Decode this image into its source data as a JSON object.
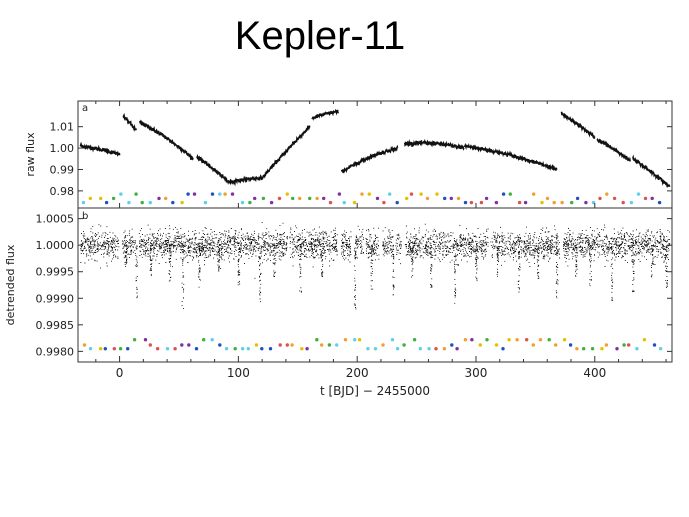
{
  "slide": {
    "title": "Kepler-11"
  },
  "chart_data": [
    {
      "type": "scatter",
      "panel": "a",
      "ylabel": "raw flux",
      "xlim": [
        -35,
        465
      ],
      "ylim": [
        0.972,
        1.022
      ],
      "yticks": [
        0.98,
        0.99,
        1.0,
        1.01
      ],
      "ytick_labels": [
        "0.98",
        "0.99",
        "1.00",
        "1.01"
      ],
      "x_gaps": [
        [
          7,
          14
        ],
        [
          185,
          195
        ],
        [
          370,
          372
        ]
      ],
      "segments": [
        {
          "x": [
            -33,
            0
          ],
          "y": [
            1.001,
            0.997
          ]
        },
        {
          "x": [
            3,
            14
          ],
          "y": [
            1.015,
            1.008
          ]
        },
        {
          "x": [
            17,
            62
          ],
          "y": [
            1.012,
            0.995
          ]
        },
        {
          "x": [
            65,
            92
          ],
          "y": [
            0.996,
            0.984
          ]
        },
        {
          "x": [
            92,
            120
          ],
          "y": [
            0.984,
            0.986
          ]
        },
        {
          "x": [
            120,
            160
          ],
          "y": [
            0.986,
            1.01
          ]
        },
        {
          "x": [
            162,
            184
          ],
          "y": [
            1.014,
            1.017
          ]
        },
        {
          "x": [
            187,
            234
          ],
          "y": [
            0.989,
            1.0
          ]
        },
        {
          "x": [
            240,
            290
          ],
          "y": [
            1.002,
            1.0
          ]
        },
        {
          "x": [
            290,
            368
          ],
          "y": [
            1.001,
            0.99
          ]
        },
        {
          "x": [
            372,
            400
          ],
          "y": [
            1.016,
            1.005
          ]
        },
        {
          "x": [
            402,
            430
          ],
          "y": [
            1.004,
            0.994
          ]
        },
        {
          "x": [
            432,
            463
          ],
          "y": [
            0.995,
            0.982
          ]
        }
      ],
      "transit_markers_y": [
        0.9745,
        0.9765,
        0.9785
      ],
      "marker_colors": [
        "#d9534f",
        "#f0a030",
        "#3fb040",
        "#2050c0",
        "#8030a0",
        "#60d0e8",
        "#e6c000"
      ]
    },
    {
      "type": "scatter",
      "panel": "b",
      "ylabel": "detrended flux",
      "xlabel": "t [BJD] − 2455000",
      "xlim": [
        -35,
        465
      ],
      "ylim": [
        0.9978,
        1.0007
      ],
      "yticks": [
        0.998,
        0.9985,
        0.999,
        0.9995,
        1.0,
        1.0005
      ],
      "ytick_labels": [
        "0.9980",
        "0.9985",
        "0.9990",
        "0.9995",
        "1.0000",
        "1.0005"
      ],
      "xticks": [
        0,
        100,
        200,
        300,
        400
      ],
      "xtick_labels": [
        "0",
        "100",
        "200",
        "300",
        "400"
      ],
      "baseline": 1.0,
      "scatter_sigma": 0.00013,
      "dips": [
        {
          "x": 5,
          "depth": 0.0004
        },
        {
          "x": 14,
          "depth": 0.001
        },
        {
          "x": 26,
          "depth": 0.0006
        },
        {
          "x": 42,
          "depth": 0.0007
        },
        {
          "x": 53,
          "depth": 0.0012
        },
        {
          "x": 67,
          "depth": 0.0009
        },
        {
          "x": 83,
          "depth": 0.0005
        },
        {
          "x": 100,
          "depth": 0.0008
        },
        {
          "x": 118,
          "depth": 0.0011
        },
        {
          "x": 130,
          "depth": 0.0006
        },
        {
          "x": 152,
          "depth": 0.0009
        },
        {
          "x": 170,
          "depth": 0.0006
        },
        {
          "x": 198,
          "depth": 0.0012
        },
        {
          "x": 212,
          "depth": 0.0009
        },
        {
          "x": 230,
          "depth": 0.001
        },
        {
          "x": 246,
          "depth": 0.0006
        },
        {
          "x": 262,
          "depth": 0.0008
        },
        {
          "x": 282,
          "depth": 0.0011
        },
        {
          "x": 300,
          "depth": 0.0007
        },
        {
          "x": 318,
          "depth": 0.0006
        },
        {
          "x": 336,
          "depth": 0.0009
        },
        {
          "x": 352,
          "depth": 0.0007
        },
        {
          "x": 368,
          "depth": 0.001
        },
        {
          "x": 384,
          "depth": 0.0006
        },
        {
          "x": 396,
          "depth": 0.0008
        },
        {
          "x": 414,
          "depth": 0.0012
        },
        {
          "x": 432,
          "depth": 0.0009
        },
        {
          "x": 448,
          "depth": 0.0006
        },
        {
          "x": 460,
          "depth": 0.0008
        }
      ],
      "x_gaps": [
        [
          -1,
          2
        ],
        [
          13,
          16
        ],
        [
          141,
          143
        ],
        [
          183,
          186
        ],
        [
          195,
          198
        ],
        [
          205,
          207
        ],
        [
          218,
          221
        ],
        [
          230,
          232
        ],
        [
          237,
          240
        ],
        [
          310,
          312
        ],
        [
          370,
          373
        ]
      ],
      "transit_markers_y": [
        0.99805,
        0.99812,
        0.99822
      ],
      "marker_colors": [
        "#d9534f",
        "#f0a030",
        "#3fb040",
        "#2050c0",
        "#8030a0",
        "#60d0e8",
        "#e6c000"
      ]
    }
  ]
}
